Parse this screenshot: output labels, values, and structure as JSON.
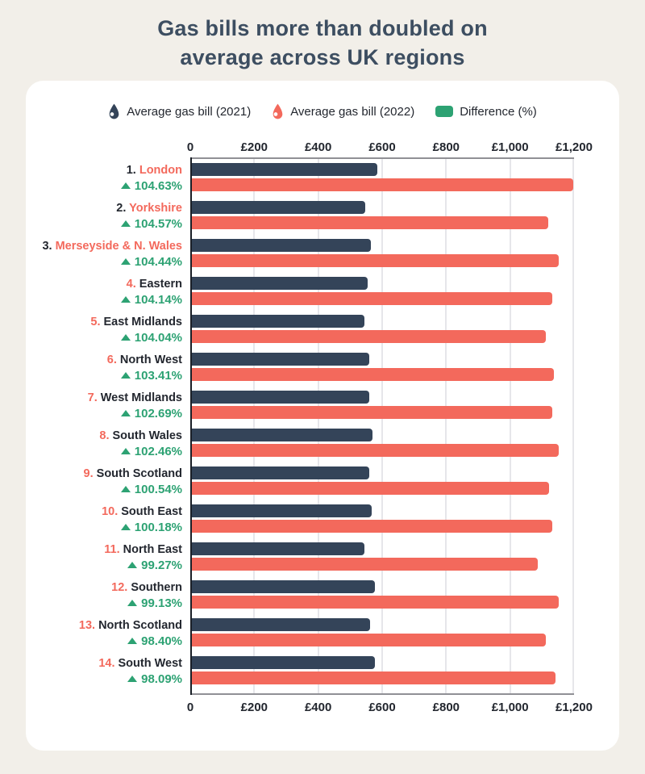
{
  "page": {
    "background": "#f2efe9",
    "card_background": "#ffffff"
  },
  "title": {
    "line1": "Gas bills more than doubled on",
    "line2": "average across UK regions",
    "color": "#3d4e61"
  },
  "legend": {
    "items": [
      {
        "icon": "flame-icon",
        "label": "Average gas bill (2021)",
        "color": "#344459"
      },
      {
        "icon": "flame-icon",
        "label": "Average gas bill (2022)",
        "color": "#f3695c"
      },
      {
        "icon": "swatch",
        "label": "Difference (%)",
        "color": "#2da273"
      }
    ]
  },
  "axis": {
    "tick_labels": [
      "0",
      "£200",
      "£400",
      "£600",
      "£800",
      "£1,000",
      "£1,200"
    ],
    "max": 1200
  },
  "chart_data": {
    "type": "bar",
    "orientation": "horizontal",
    "title": "Gas bills more than doubled on average across UK regions",
    "categories": [
      "London",
      "Yorkshire",
      "Merseyside & N. Wales",
      "Eastern",
      "East Midlands",
      "North West",
      "West Midlands",
      "South Wales",
      "South Scotland",
      "South East",
      "North East",
      "Southern",
      "North Scotland",
      "South West"
    ],
    "series": [
      {
        "name": "Average gas bill (2021)",
        "color": "#344459",
        "values": [
          585,
          547,
          564,
          555,
          545,
          559,
          559,
          569,
          559,
          566,
          545,
          578,
          561,
          577
        ]
      },
      {
        "name": "Average gas bill (2022)",
        "color": "#f3695c",
        "values": [
          1197,
          1119,
          1153,
          1133,
          1112,
          1137,
          1133,
          1152,
          1121,
          1133,
          1086,
          1151,
          1113,
          1143
        ]
      }
    ],
    "difference_pct": [
      104.63,
      104.57,
      104.44,
      104.14,
      104.04,
      103.41,
      102.69,
      102.46,
      100.54,
      100.18,
      99.27,
      99.13,
      98.4,
      98.09
    ],
    "xlim": [
      0,
      1200
    ],
    "x_tick_labels": [
      "0",
      "£200",
      "£400",
      "£600",
      "£800",
      "£1,000",
      "£1,200"
    ],
    "grid": true,
    "legend_position": "top"
  },
  "regions": [
    {
      "rank": "1.",
      "name": "London",
      "diff_label": "104.63%",
      "v2021": 585,
      "v2022": 1197,
      "highlight": true
    },
    {
      "rank": "2.",
      "name": "Yorkshire",
      "diff_label": "104.57%",
      "v2021": 547,
      "v2022": 1119,
      "highlight": true
    },
    {
      "rank": "3.",
      "name": "Merseyside & N. Wales",
      "diff_label": "104.44%",
      "v2021": 564,
      "v2022": 1153,
      "highlight": true
    },
    {
      "rank": "4.",
      "name": "Eastern",
      "diff_label": "104.14%",
      "v2021": 555,
      "v2022": 1133,
      "highlight": false
    },
    {
      "rank": "5.",
      "name": "East Midlands",
      "diff_label": "104.04%",
      "v2021": 545,
      "v2022": 1112,
      "highlight": false
    },
    {
      "rank": "6.",
      "name": "North West",
      "diff_label": "103.41%",
      "v2021": 559,
      "v2022": 1137,
      "highlight": false
    },
    {
      "rank": "7.",
      "name": "West Midlands",
      "diff_label": "102.69%",
      "v2021": 559,
      "v2022": 1133,
      "highlight": false
    },
    {
      "rank": "8.",
      "name": "South Wales",
      "diff_label": "102.46%",
      "v2021": 569,
      "v2022": 1152,
      "highlight": false
    },
    {
      "rank": "9.",
      "name": "South Scotland",
      "diff_label": "100.54%",
      "v2021": 559,
      "v2022": 1121,
      "highlight": false
    },
    {
      "rank": "10.",
      "name": "South East",
      "diff_label": "100.18%",
      "v2021": 566,
      "v2022": 1133,
      "highlight": false
    },
    {
      "rank": "11.",
      "name": "North East",
      "diff_label": "99.27%",
      "v2021": 545,
      "v2022": 1086,
      "highlight": false
    },
    {
      "rank": "12.",
      "name": "Southern",
      "diff_label": "99.13%",
      "v2021": 578,
      "v2022": 1151,
      "highlight": false
    },
    {
      "rank": "13.",
      "name": "North Scotland",
      "diff_label": "98.40%",
      "v2021": 561,
      "v2022": 1113,
      "highlight": false
    },
    {
      "rank": "14.",
      "name": "South West",
      "diff_label": "98.09%",
      "v2021": 577,
      "v2022": 1143,
      "highlight": false
    }
  ],
  "colors": {
    "navy": "#344459",
    "coral": "#f3695c",
    "green": "#2da273",
    "grid": "#e6e6ea",
    "axis_line": "#909095",
    "baseline": "#1a1f27",
    "text_dark": "#23272f"
  }
}
